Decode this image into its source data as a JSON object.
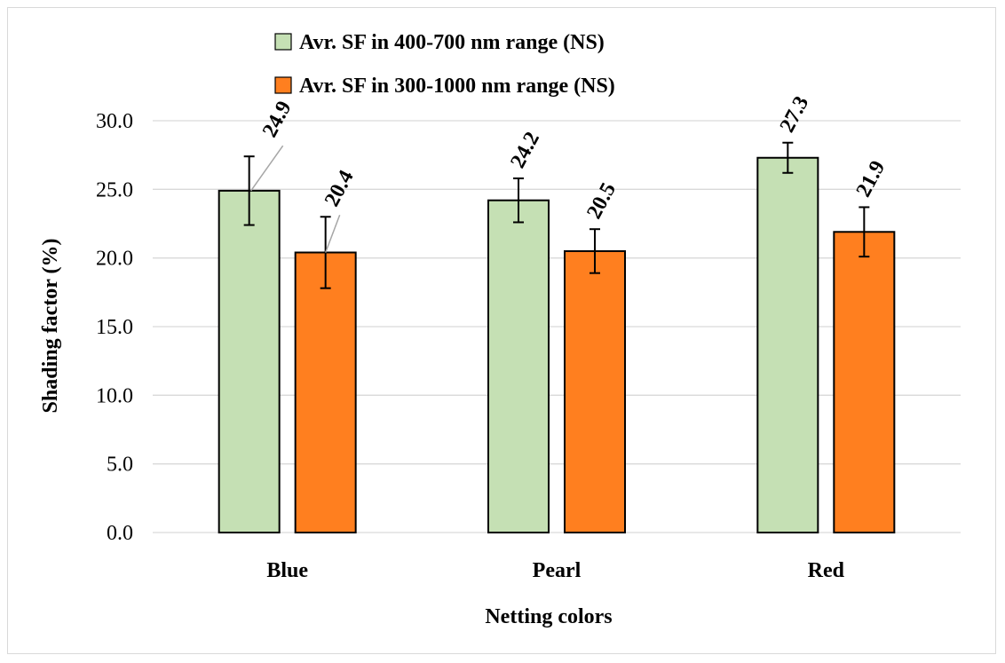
{
  "chart_data": {
    "type": "bar",
    "title": "",
    "xlabel": "Netting colors",
    "ylabel": "Shading factor (%)",
    "ylim": [
      0,
      30
    ],
    "yticks": [
      "0.0",
      "5.0",
      "10.0",
      "15.0",
      "20.0",
      "25.0",
      "30.0"
    ],
    "categories": [
      "Blue",
      "Pearl",
      "Red"
    ],
    "series": [
      {
        "name": "Avr. SF in 400-700 nm range (NS)",
        "color": "#c5e0b4",
        "values": [
          24.9,
          24.2,
          27.3
        ],
        "labels": [
          "24.9",
          "24.2",
          "27.3"
        ],
        "error": [
          2.5,
          1.6,
          1.1
        ]
      },
      {
        "name": "Avr. SF in 300-1000 nm range (NS)",
        "color": "#ff7f1f",
        "values": [
          20.4,
          20.5,
          21.9
        ],
        "labels": [
          "20.4",
          "20.5",
          "21.9"
        ],
        "error": [
          2.6,
          1.6,
          1.8
        ]
      }
    ],
    "grid": true,
    "legend_position": "top-center"
  }
}
